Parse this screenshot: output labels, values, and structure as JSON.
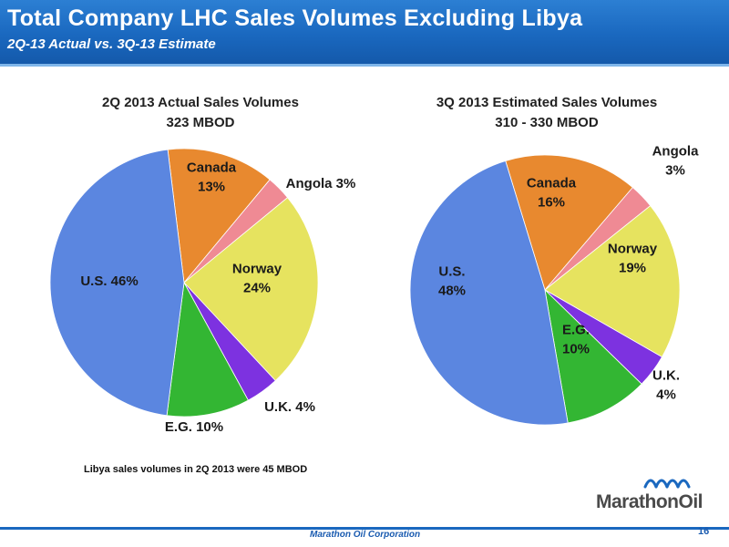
{
  "header": {
    "title": "Total Company LHC Sales Volumes Excluding Libya",
    "subtitle": "2Q-13 Actual  vs. 3Q-13 Estimate"
  },
  "chart_data": [
    {
      "type": "pie",
      "title": "2Q 2013 Actual Sales Volumes",
      "subtitle": "323 MBOD",
      "slices": [
        {
          "name": "Canada",
          "value": 13,
          "label_lines": [
            "Canada",
            "13%"
          ],
          "color": "#e8892f"
        },
        {
          "name": "Angola",
          "value": 3,
          "label_lines": [
            "Angola 3%"
          ],
          "color": "#ef8a94"
        },
        {
          "name": "Norway",
          "value": 24,
          "label_lines": [
            "Norway",
            "24%"
          ],
          "color": "#e6e35f"
        },
        {
          "name": "U.K.",
          "value": 4,
          "label_lines": [
            "U.K. 4%"
          ],
          "color": "#7d32e0"
        },
        {
          "name": "E.G.",
          "value": 10,
          "label_lines": [
            "E.G. 10%"
          ],
          "color": "#33b633"
        },
        {
          "name": "U.S.",
          "value": 46,
          "label_lines": [
            "U.S. 46%"
          ],
          "color": "#5b86e0"
        }
      ]
    },
    {
      "type": "pie",
      "title": "3Q 2013 Estimated Sales Volumes",
      "subtitle": "310 - 330 MBOD",
      "slices": [
        {
          "name": "Canada",
          "value": 16,
          "label_lines": [
            "Canada",
            "16%"
          ],
          "color": "#e8892f"
        },
        {
          "name": "Angola",
          "value": 3,
          "label_lines": [
            "Angola",
            "3%"
          ],
          "color": "#ef8a94"
        },
        {
          "name": "Norway",
          "value": 19,
          "label_lines": [
            "Norway",
            "19%"
          ],
          "color": "#e6e35f"
        },
        {
          "name": "U.K.",
          "value": 4,
          "label_lines": [
            "U.K.",
            "4%"
          ],
          "color": "#7d32e0"
        },
        {
          "name": "E.G.",
          "value": 10,
          "label_lines": [
            "E.G.",
            "10%"
          ],
          "color": "#33b633"
        },
        {
          "name": "U.S.",
          "value": 48,
          "label_lines": [
            "U.S.",
            "48%"
          ],
          "color": "#5b86e0"
        }
      ]
    }
  ],
  "footnote": "Libya sales volumes in 2Q 2013 were 45 MBOD",
  "logo_text": "MarathonOil",
  "footer": {
    "company": "Marathon Oil Corporation",
    "page_number": "16"
  }
}
